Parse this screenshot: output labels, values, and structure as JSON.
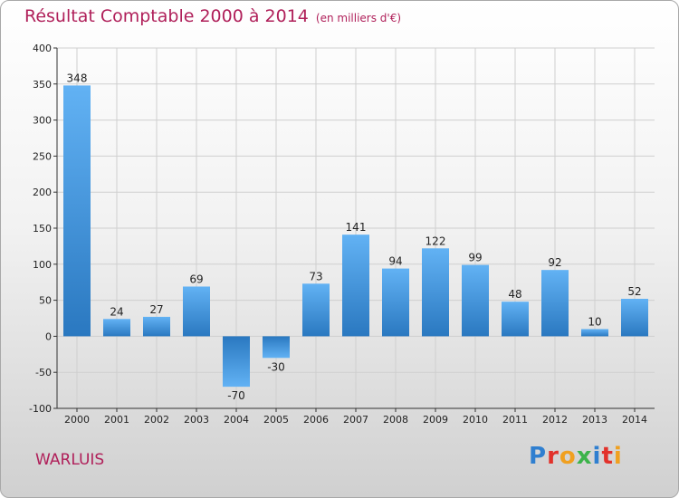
{
  "header": {
    "title": "Résultat Comptable 2000 à 2014",
    "unit": "(en milliers d'€)"
  },
  "footer": {
    "place": "WARLUIS",
    "logo_letters": [
      "P",
      "r",
      "o",
      "x",
      "i",
      "t",
      "i"
    ]
  },
  "colors": {
    "title": "#b0205a",
    "bar_light": "#5aaaf0",
    "bar_dark": "#2a78c0",
    "grid": "#cfcfcf"
  },
  "chart_data": {
    "type": "bar",
    "title": "Résultat Comptable 2000 à 2014",
    "subtitle": "(en milliers d'€)",
    "xlabel": "",
    "ylabel": "",
    "ylim": [
      -100,
      400
    ],
    "yticks": [
      -100,
      -50,
      0,
      50,
      100,
      150,
      200,
      250,
      300,
      350,
      400
    ],
    "grid": true,
    "categories": [
      "2000",
      "2001",
      "2002",
      "2003",
      "2004",
      "2005",
      "2006",
      "2007",
      "2008",
      "2009",
      "2010",
      "2011",
      "2012",
      "2013",
      "2014"
    ],
    "values": [
      348,
      24,
      27,
      69,
      -70,
      -30,
      73,
      141,
      94,
      122,
      99,
      48,
      92,
      10,
      52
    ]
  }
}
